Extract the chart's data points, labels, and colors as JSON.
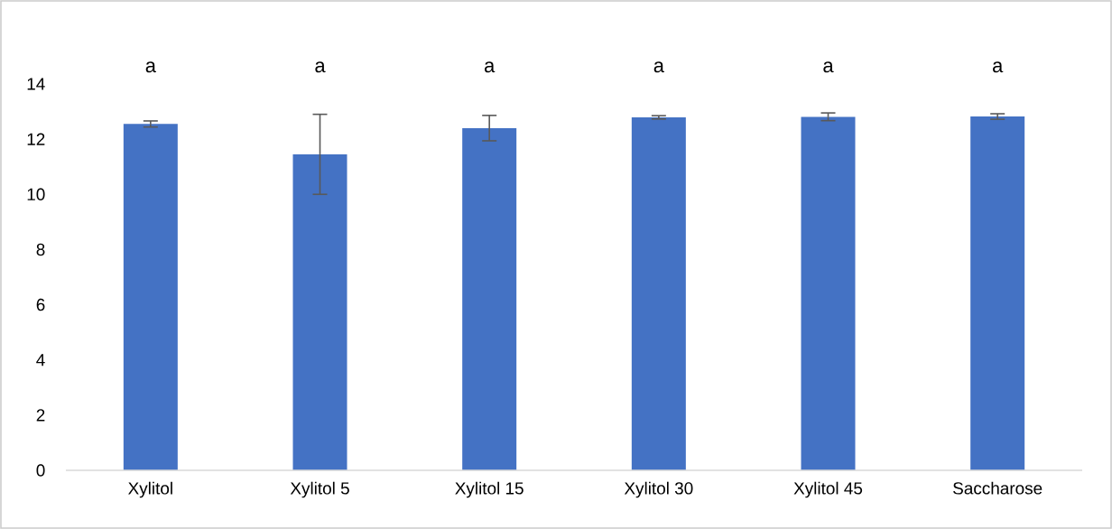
{
  "chart_data": {
    "type": "bar",
    "categories": [
      "Xylitol",
      "Xylitol 5",
      "Xylitol 15",
      "Xylitol 30",
      "Xylitol 45",
      "Saccharose"
    ],
    "values": [
      12.55,
      11.45,
      12.4,
      12.79,
      12.81,
      12.82
    ],
    "errors": [
      0.11,
      1.45,
      0.46,
      0.06,
      0.14,
      0.1
    ],
    "color": "#4472c4",
    "ylim": [
      0,
      14
    ],
    "yticks": [
      0,
      2,
      4,
      6,
      8,
      10,
      12,
      14
    ],
    "grid": false,
    "annotations": [
      "a",
      "a",
      "a",
      "a",
      "a",
      "a"
    ]
  }
}
